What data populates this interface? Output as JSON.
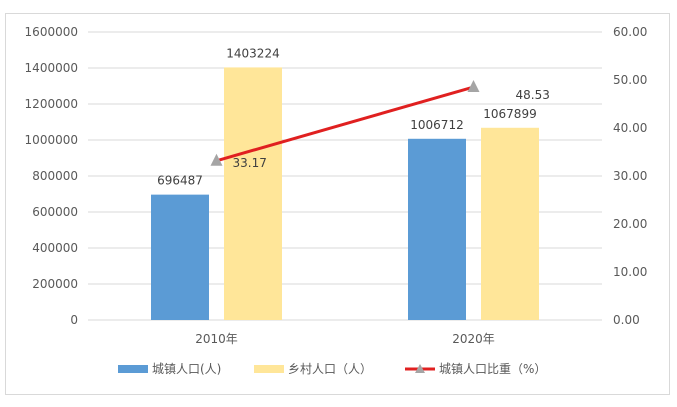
{
  "chart_data": {
    "type": "bar",
    "categories": [
      "2010年",
      "2020年"
    ],
    "series": [
      {
        "name": "城镇人口(人)",
        "kind": "bar",
        "axis": "left",
        "color": "#5b9bd5",
        "values": [
          696487,
          1006712
        ]
      },
      {
        "name": "乡村人口（人）",
        "kind": "bar",
        "axis": "left",
        "color": "#ffe699",
        "values": [
          1403224,
          1067899
        ]
      },
      {
        "name": "城镇人口比重（%）",
        "kind": "line",
        "axis": "right",
        "color": "#e02020",
        "marker_color": "#a5a5a5",
        "values": [
          33.17,
          48.53
        ]
      }
    ],
    "y_left": {
      "min": 0,
      "max": 1600000,
      "step": 200000,
      "ticks": [
        "0",
        "200000",
        "400000",
        "600000",
        "800000",
        "1000000",
        "1200000",
        "1400000",
        "1600000"
      ]
    },
    "y_right": {
      "min": 0,
      "max": 60,
      "step": 10,
      "ticks": [
        "0.00",
        "10.00",
        "20.00",
        "30.00",
        "40.00",
        "50.00",
        "60.00"
      ]
    },
    "data_labels": {
      "bar_0": [
        "696487",
        "1006712"
      ],
      "bar_1": [
        "1403224",
        "1067899"
      ],
      "line": [
        "33.17",
        "48.53"
      ]
    },
    "grid": true,
    "legend_position": "bottom"
  }
}
